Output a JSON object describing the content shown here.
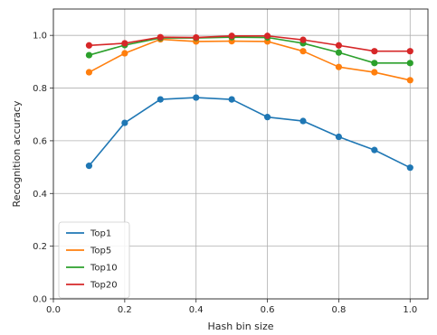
{
  "chart_data": {
    "type": "line",
    "xlabel": "Hash bin size",
    "ylabel": "Recognition accuracy",
    "xlim": [
      0.0,
      1.05
    ],
    "ylim": [
      0.0,
      1.1
    ],
    "xticks": [
      "0.0",
      "0.2",
      "0.4",
      "0.6",
      "0.8",
      "1.0"
    ],
    "yticks": [
      "0.0",
      "0.2",
      "0.4",
      "0.6",
      "0.8",
      "1.0"
    ],
    "grid": true,
    "legend_position": "lower-left",
    "x": [
      0.1,
      0.2,
      0.3,
      0.4,
      0.5,
      0.6,
      0.7,
      0.8,
      0.9,
      1.0
    ],
    "series": [
      {
        "name": "Top1",
        "color": "#1f77b4",
        "values": [
          0.505,
          0.668,
          0.757,
          0.764,
          0.757,
          0.69,
          0.675,
          0.615,
          0.565,
          0.498
        ]
      },
      {
        "name": "Top5",
        "color": "#ff7f0e",
        "values": [
          0.86,
          0.932,
          0.985,
          0.977,
          0.978,
          0.977,
          0.94,
          0.88,
          0.86,
          0.83
        ]
      },
      {
        "name": "Top10",
        "color": "#2ca02c",
        "values": [
          0.925,
          0.963,
          0.99,
          0.99,
          0.993,
          0.992,
          0.97,
          0.935,
          0.895,
          0.895
        ]
      },
      {
        "name": "Top20",
        "color": "#d62728",
        "values": [
          0.962,
          0.97,
          0.993,
          0.992,
          0.998,
          0.998,
          0.983,
          0.962,
          0.94,
          0.94
        ]
      }
    ]
  }
}
